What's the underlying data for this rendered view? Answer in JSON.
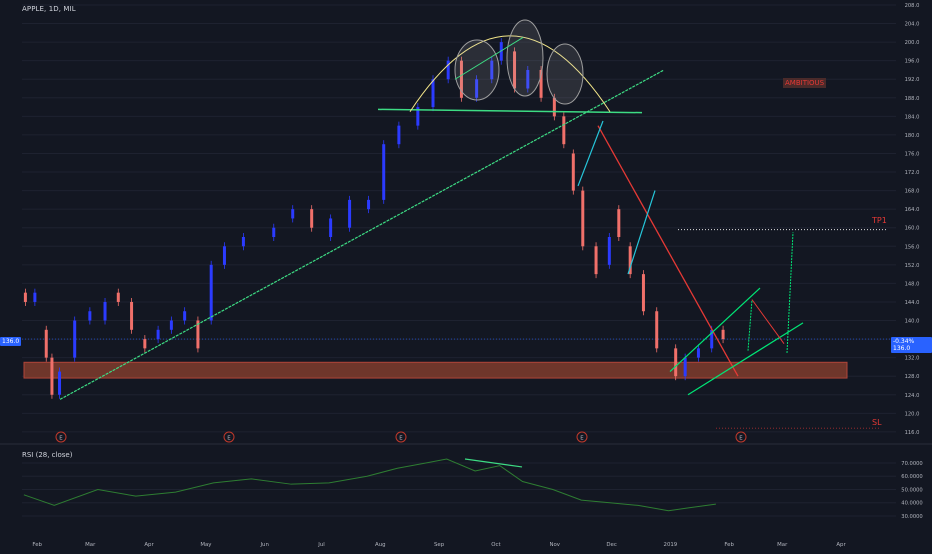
{
  "header": {
    "symbol": "APPLE, 1D, MIL"
  },
  "price_axis": {
    "ticks": [
      "208.0",
      "204.0",
      "200.0",
      "196.0",
      "192.0",
      "188.0",
      "184.0",
      "180.0",
      "176.0",
      "172.0",
      "168.0",
      "164.0",
      "160.0",
      "156.0",
      "152.0",
      "148.0",
      "144.0",
      "140.0",
      "136.0",
      "132.0",
      "128.0",
      "124.0",
      "120.0",
      "116.0"
    ],
    "left_tag": "136.0",
    "right_tag": "-0.34% 136.0"
  },
  "time_axis": {
    "labels": [
      "Feb",
      "Mar",
      "Apr",
      "May",
      "Jun",
      "Jul",
      "Aug",
      "Sep",
      "Oct",
      "Nov",
      "Dec",
      "2019",
      "Feb",
      "Mar",
      "Apr"
    ]
  },
  "annotations": {
    "ambitious": "AMBITIOUS",
    "tp1": "TP1",
    "sl": "SL",
    "earnings_marker": "E"
  },
  "rsi": {
    "label": "RSI (28, close)",
    "ticks": [
      "70.0000",
      "60.0000",
      "50.0000",
      "40.0000",
      "30.0000"
    ]
  },
  "colors": {
    "background": "#131722",
    "up_candle": "#2b3bff",
    "down_candle": "#f0706a",
    "trendline": "#3ddc84",
    "channel": "#00e676",
    "arc": "#f4e78a",
    "arrow_down": "#e53935",
    "support_zone": "#7a3a2c",
    "rsi_line": "#2e7d32",
    "tp1": "#e53935",
    "current_price": "#2962ff"
  },
  "chart_data": [
    {
      "type": "candlestick",
      "title": "APPLE, 1D, MIL",
      "ylim": [
        114,
        210
      ],
      "x_range": [
        "2018-01-24",
        "2019-04-30"
      ],
      "candles": [
        {
          "d": "2018-01-25",
          "o": 146,
          "c": 144
        },
        {
          "d": "2018-01-30",
          "o": 144,
          "c": 146
        },
        {
          "d": "2018-02-05",
          "o": 138,
          "c": 132
        },
        {
          "d": "2018-02-08",
          "o": 132,
          "c": 124
        },
        {
          "d": "2018-02-12",
          "o": 124,
          "c": 129
        },
        {
          "d": "2018-02-20",
          "o": 132,
          "c": 140
        },
        {
          "d": "2018-02-28",
          "o": 140,
          "c": 142
        },
        {
          "d": "2018-03-08",
          "o": 140,
          "c": 144
        },
        {
          "d": "2018-03-15",
          "o": 146,
          "c": 144
        },
        {
          "d": "2018-03-22",
          "o": 144,
          "c": 138
        },
        {
          "d": "2018-03-29",
          "o": 136,
          "c": 134
        },
        {
          "d": "2018-04-05",
          "o": 136,
          "c": 138
        },
        {
          "d": "2018-04-12",
          "o": 138,
          "c": 140
        },
        {
          "d": "2018-04-19",
          "o": 140,
          "c": 142
        },
        {
          "d": "2018-04-26",
          "o": 140,
          "c": 134
        },
        {
          "d": "2018-05-03",
          "o": 140,
          "c": 152
        },
        {
          "d": "2018-05-10",
          "o": 152,
          "c": 156
        },
        {
          "d": "2018-05-20",
          "o": 156,
          "c": 158
        },
        {
          "d": "2018-06-05",
          "o": 158,
          "c": 160
        },
        {
          "d": "2018-06-15",
          "o": 162,
          "c": 164
        },
        {
          "d": "2018-06-25",
          "o": 164,
          "c": 160
        },
        {
          "d": "2018-07-05",
          "o": 158,
          "c": 162
        },
        {
          "d": "2018-07-15",
          "o": 160,
          "c": 166
        },
        {
          "d": "2018-07-25",
          "o": 164,
          "c": 166
        },
        {
          "d": "2018-08-02",
          "o": 166,
          "c": 178
        },
        {
          "d": "2018-08-10",
          "o": 178,
          "c": 182
        },
        {
          "d": "2018-08-20",
          "o": 182,
          "c": 186
        },
        {
          "d": "2018-08-28",
          "o": 186,
          "c": 192
        },
        {
          "d": "2018-09-05",
          "o": 192,
          "c": 196
        },
        {
          "d": "2018-09-12",
          "o": 196,
          "c": 188
        },
        {
          "d": "2018-09-20",
          "o": 188,
          "c": 192
        },
        {
          "d": "2018-09-28",
          "o": 192,
          "c": 196
        },
        {
          "d": "2018-10-03",
          "o": 196,
          "c": 200
        },
        {
          "d": "2018-10-10",
          "o": 198,
          "c": 190
        },
        {
          "d": "2018-10-17",
          "o": 190,
          "c": 194
        },
        {
          "d": "2018-10-24",
          "o": 194,
          "c": 188
        },
        {
          "d": "2018-10-31",
          "o": 188,
          "c": 184
        },
        {
          "d": "2018-11-05",
          "o": 184,
          "c": 178
        },
        {
          "d": "2018-11-10",
          "o": 176,
          "c": 168
        },
        {
          "d": "2018-11-15",
          "o": 168,
          "c": 156
        },
        {
          "d": "2018-11-22",
          "o": 156,
          "c": 150
        },
        {
          "d": "2018-11-29",
          "o": 152,
          "c": 158
        },
        {
          "d": "2018-12-04",
          "o": 164,
          "c": 158
        },
        {
          "d": "2018-12-10",
          "o": 156,
          "c": 150
        },
        {
          "d": "2018-12-17",
          "o": 150,
          "c": 142
        },
        {
          "d": "2018-12-24",
          "o": 142,
          "c": 134
        },
        {
          "d": "2019-01-03",
          "o": 134,
          "c": 128
        },
        {
          "d": "2019-01-08",
          "o": 128,
          "c": 132
        },
        {
          "d": "2019-01-15",
          "o": 132,
          "c": 134
        },
        {
          "d": "2019-01-22",
          "o": 134,
          "c": 138
        },
        {
          "d": "2019-01-28",
          "o": 138,
          "c": 136
        }
      ],
      "rsi_series": [
        {
          "d": "2018-01-25",
          "v": 46
        },
        {
          "d": "2018-02-10",
          "v": 38
        },
        {
          "d": "2018-03-05",
          "v": 50
        },
        {
          "d": "2018-03-25",
          "v": 45
        },
        {
          "d": "2018-04-15",
          "v": 48
        },
        {
          "d": "2018-05-05",
          "v": 55
        },
        {
          "d": "2018-05-25",
          "v": 58
        },
        {
          "d": "2018-06-15",
          "v": 54
        },
        {
          "d": "2018-07-05",
          "v": 55
        },
        {
          "d": "2018-07-25",
          "v": 60
        },
        {
          "d": "2018-08-10",
          "v": 66
        },
        {
          "d": "2018-08-25",
          "v": 70
        },
        {
          "d": "2018-09-05",
          "v": 73
        },
        {
          "d": "2018-09-20",
          "v": 64
        },
        {
          "d": "2018-10-03",
          "v": 68
        },
        {
          "d": "2018-10-15",
          "v": 56
        },
        {
          "d": "2018-10-31",
          "v": 50
        },
        {
          "d": "2018-11-15",
          "v": 42
        },
        {
          "d": "2018-11-30",
          "v": 40
        },
        {
          "d": "2018-12-15",
          "v": 38
        },
        {
          "d": "2018-12-31",
          "v": 34
        },
        {
          "d": "2019-01-10",
          "v": 36
        },
        {
          "d": "2019-01-25",
          "v": 39
        }
      ]
    }
  ]
}
